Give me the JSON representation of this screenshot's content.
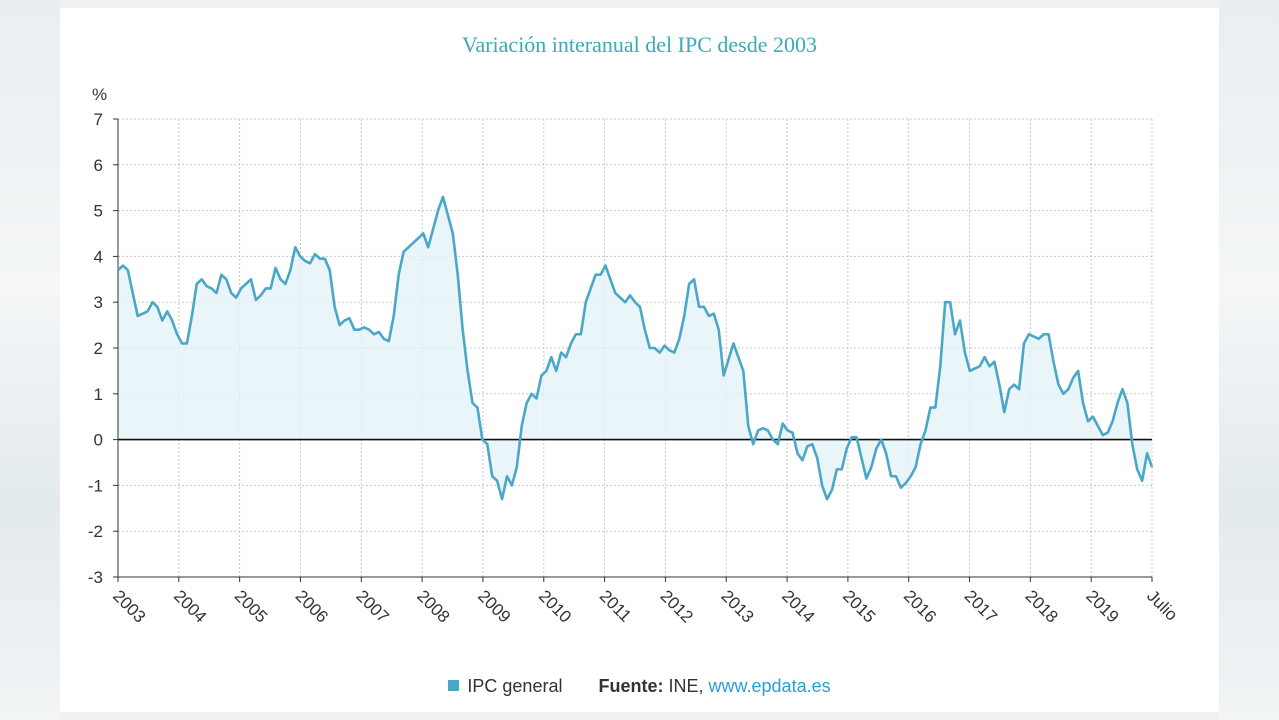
{
  "title": "Variación interanual del IPC desde 2003",
  "legend": {
    "series_label": "IPC general",
    "source_label": "Fuente:",
    "source_name": "INE,",
    "source_link": "www.epdata.es"
  },
  "colors": {
    "line": "#4aa7c7",
    "area": "#e4f3f8",
    "title": "#3aaab8",
    "link": "#2a9fd0"
  },
  "chart_data": {
    "type": "area",
    "title": "Variación interanual del IPC desde 2003",
    "ylabel": "%",
    "xlabel": "",
    "ylim": [
      -3,
      7
    ],
    "yticks": [
      "-3",
      "-2",
      "-1",
      "0",
      "1",
      "2",
      "3",
      "4",
      "5",
      "6",
      "7"
    ],
    "xticks": [
      "2003",
      "2004",
      "2005",
      "2006",
      "2007",
      "2008",
      "2009",
      "2010",
      "2011",
      "2012",
      "2013",
      "2014",
      "2015",
      "2016",
      "2017",
      "2018",
      "2019",
      "Julio"
    ],
    "grid": true,
    "series": [
      {
        "name": "IPC general",
        "x_start": 2003.0,
        "x_step_months": 1,
        "values": [
          3.7,
          3.8,
          3.7,
          3.2,
          2.7,
          2.75,
          2.8,
          3.0,
          2.9,
          2.6,
          2.8,
          2.6,
          2.3,
          2.1,
          2.1,
          2.7,
          3.4,
          3.5,
          3.35,
          3.3,
          3.2,
          3.6,
          3.5,
          3.2,
          3.1,
          3.3,
          3.4,
          3.5,
          3.05,
          3.15,
          3.3,
          3.3,
          3.75,
          3.5,
          3.4,
          3.7,
          4.2,
          4.0,
          3.9,
          3.85,
          4.05,
          3.95,
          3.95,
          3.7,
          2.9,
          2.5,
          2.6,
          2.65,
          2.4,
          2.4,
          2.45,
          2.4,
          2.3,
          2.35,
          2.2,
          2.15,
          2.7,
          3.6,
          4.1,
          4.2,
          4.3,
          4.4,
          4.5,
          4.2,
          4.6,
          5.0,
          5.3,
          4.9,
          4.5,
          3.6,
          2.4,
          1.5,
          0.8,
          0.7,
          0.0,
          -0.1,
          -0.8,
          -0.9,
          -1.3,
          -0.8,
          -1.0,
          -0.6,
          0.3,
          0.8,
          1.0,
          0.9,
          1.4,
          1.5,
          1.8,
          1.5,
          1.9,
          1.8,
          2.1,
          2.3,
          2.3,
          3.0,
          3.3,
          3.6,
          3.6,
          3.8,
          3.5,
          3.2,
          3.1,
          3.0,
          3.15,
          3.0,
          2.9,
          2.4,
          2.0,
          2.0,
          1.9,
          2.05,
          1.95,
          1.9,
          2.2,
          2.7,
          3.4,
          3.5,
          2.9,
          2.9,
          2.7,
          2.75,
          2.4,
          1.4,
          1.75,
          2.1,
          1.8,
          1.5,
          0.3,
          -0.1,
          0.2,
          0.25,
          0.2,
          0.0,
          -0.1,
          0.35,
          0.2,
          0.15,
          -0.3,
          -0.45,
          -0.15,
          -0.1,
          -0.4,
          -1.0,
          -1.3,
          -1.1,
          -0.65,
          -0.65,
          -0.2,
          0.05,
          0.05,
          -0.4,
          -0.85,
          -0.6,
          -0.2,
          0.0,
          -0.3,
          -0.8,
          -0.8,
          -1.05,
          -0.95,
          -0.8,
          -0.6,
          -0.1,
          0.2,
          0.7,
          0.7,
          1.6,
          3.0,
          3.0,
          2.3,
          2.6,
          1.9,
          1.5,
          1.55,
          1.6,
          1.8,
          1.6,
          1.7,
          1.2,
          0.6,
          1.1,
          1.2,
          1.1,
          2.1,
          2.3,
          2.25,
          2.2,
          2.3,
          2.3,
          1.7,
          1.2,
          1.0,
          1.1,
          1.35,
          1.5,
          0.8,
          0.4,
          0.5,
          0.3,
          0.1,
          0.15,
          0.4,
          0.8,
          1.1,
          0.8,
          -0.1,
          -0.65,
          -0.9,
          -0.3,
          -0.6
        ]
      }
    ]
  }
}
